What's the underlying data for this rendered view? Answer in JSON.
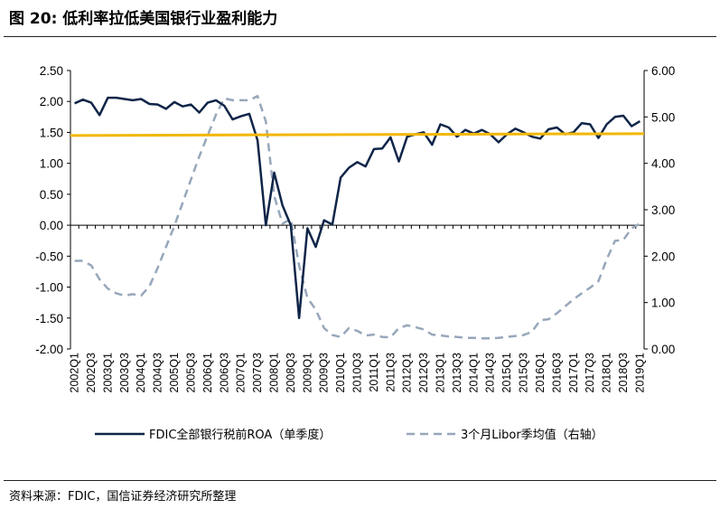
{
  "figure": {
    "title": "图 20:  低利率拉低美国银行业盈利能力",
    "source": "资料来源：FDIC，国信证券经济研究所整理"
  },
  "colors": {
    "roa": "#0f2548",
    "libor": "#97a7bb",
    "highlight": "#f2b705",
    "axis": "#000000"
  },
  "chart_data": {
    "type": "line",
    "title": "",
    "xlabel": "",
    "ylabel": "",
    "grid": false,
    "legend_position": "bottom",
    "ylim_left": [
      -2.0,
      2.5
    ],
    "ylim_right": [
      0.0,
      6.0
    ],
    "yticks_left": [
      "2.50",
      "2.00",
      "1.50",
      "1.00",
      "0.50",
      "0.00",
      "-0.50",
      "-1.00",
      "-1.50",
      "-2.00"
    ],
    "yticks_right": [
      "6.00",
      "5.00",
      "4.00",
      "3.00",
      "2.00",
      "1.00",
      "0.00"
    ],
    "x": [
      "2002Q1",
      "2002Q2",
      "2002Q3",
      "2002Q4",
      "2003Q1",
      "2003Q2",
      "2003Q3",
      "2003Q4",
      "2004Q1",
      "2004Q2",
      "2004Q3",
      "2004Q4",
      "2005Q1",
      "2005Q2",
      "2005Q3",
      "2005Q4",
      "2006Q1",
      "2006Q2",
      "2006Q3",
      "2006Q4",
      "2007Q1",
      "2007Q2",
      "2007Q3",
      "2007Q4",
      "2008Q1",
      "2008Q2",
      "2008Q3",
      "2008Q4",
      "2009Q1",
      "2009Q2",
      "2009Q3",
      "2009Q4",
      "2010Q1",
      "2010Q2",
      "2010Q3",
      "2010Q4",
      "2011Q1",
      "2011Q2",
      "2011Q3",
      "2011Q4",
      "2012Q1",
      "2012Q2",
      "2012Q3",
      "2012Q4",
      "2013Q1",
      "2013Q2",
      "2013Q3",
      "2013Q4",
      "2014Q1",
      "2014Q2",
      "2014Q3",
      "2014Q4",
      "2015Q1",
      "2015Q2",
      "2015Q3",
      "2015Q4",
      "2016Q1",
      "2016Q2",
      "2016Q3",
      "2016Q4",
      "2017Q1",
      "2017Q2",
      "2017Q3",
      "2017Q4",
      "2018Q1",
      "2018Q2",
      "2018Q3",
      "2018Q4",
      "2019Q1"
    ],
    "xtick_labels": [
      "2002Q1",
      "2002Q3",
      "2003Q1",
      "2003Q3",
      "2004Q1",
      "2004Q3",
      "2005Q1",
      "2005Q3",
      "2006Q1",
      "2006Q3",
      "2007Q1",
      "2007Q3",
      "2008Q1",
      "2008Q3",
      "2009Q1",
      "2009Q3",
      "2010Q1",
      "2010Q3",
      "2011Q1",
      "2011Q3",
      "2012Q1",
      "2012Q3",
      "2013Q1",
      "2013Q3",
      "2014Q1",
      "2014Q3",
      "2015Q1",
      "2015Q3",
      "2016Q1",
      "2016Q3",
      "2017Q1",
      "2017Q3",
      "2018Q1",
      "2018Q3",
      "2019Q1"
    ],
    "series": [
      {
        "name": "FDIC全部银行税前ROA（单季度）",
        "axis": "left",
        "style": "solid",
        "values": [
          1.97,
          2.03,
          1.98,
          1.78,
          2.06,
          2.06,
          2.04,
          2.02,
          2.04,
          1.96,
          1.95,
          1.88,
          1.99,
          1.92,
          1.95,
          1.82,
          1.98,
          2.02,
          1.93,
          1.71,
          1.76,
          1.8,
          1.37,
          0.0,
          0.85,
          0.32,
          0.0,
          -1.5,
          -0.05,
          -0.35,
          0.08,
          0.01,
          0.77,
          0.93,
          1.02,
          0.95,
          1.23,
          1.24,
          1.42,
          1.03,
          1.43,
          1.47,
          1.5,
          1.3,
          1.63,
          1.58,
          1.43,
          1.54,
          1.48,
          1.54,
          1.47,
          1.34,
          1.47,
          1.56,
          1.5,
          1.43,
          1.4,
          1.55,
          1.58,
          1.47,
          1.5,
          1.65,
          1.63,
          1.41,
          1.63,
          1.75,
          1.77,
          1.6,
          1.68
        ]
      },
      {
        "name": "3个月Libor季均值（右轴）",
        "axis": "right",
        "style": "dashed",
        "values": [
          1.9,
          1.9,
          1.8,
          1.5,
          1.3,
          1.2,
          1.15,
          1.18,
          1.15,
          1.35,
          1.75,
          2.2,
          2.65,
          3.15,
          3.65,
          4.15,
          4.6,
          5.05,
          5.4,
          5.36,
          5.36,
          5.36,
          5.45,
          4.9,
          3.3,
          2.7,
          2.8,
          1.8,
          1.1,
          0.85,
          0.45,
          0.3,
          0.26,
          0.45,
          0.39,
          0.29,
          0.31,
          0.26,
          0.25,
          0.45,
          0.51,
          0.47,
          0.42,
          0.31,
          0.29,
          0.27,
          0.26,
          0.24,
          0.24,
          0.23,
          0.23,
          0.24,
          0.26,
          0.28,
          0.3,
          0.37,
          0.62,
          0.64,
          0.77,
          0.92,
          1.07,
          1.2,
          1.32,
          1.46,
          1.93,
          2.33,
          2.35,
          2.6,
          2.7
        ]
      }
    ],
    "reference_line": {
      "axis": "left",
      "start": 1.45,
      "end": 1.48
    }
  }
}
